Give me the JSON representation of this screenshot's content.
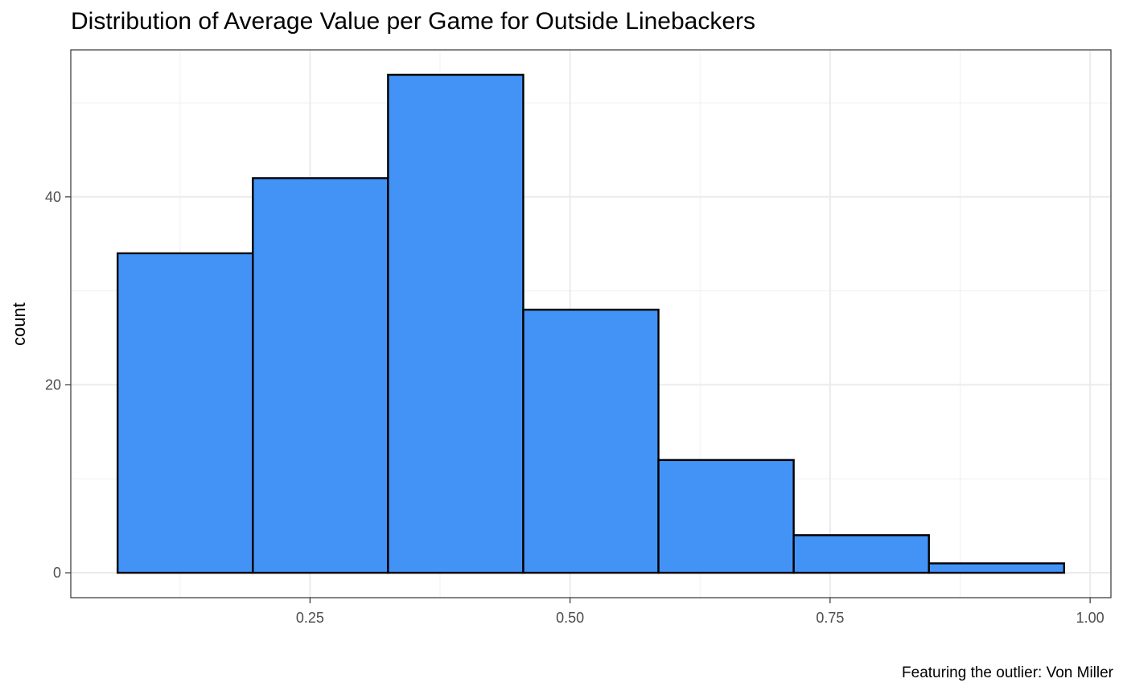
{
  "chart_data": {
    "type": "bar",
    "title": "Distribution of Average Value per Game for Outside Linebackers",
    "caption": "Featuring the outlier: Von Miller",
    "xlabel": "",
    "ylabel": "count",
    "xlim": [
      0.02,
      1.02
    ],
    "ylim": [
      -2.65,
      55.65
    ],
    "x_ticks": [
      0.25,
      0.5,
      0.75,
      1.0
    ],
    "x_tick_labels": [
      "0.25",
      "0.50",
      "0.75",
      "1.00"
    ],
    "y_ticks": [
      0,
      20,
      40
    ],
    "y_tick_labels": [
      "0",
      "20",
      "40"
    ],
    "bin_width": 0.13,
    "bins": [
      {
        "x0": 0.065,
        "x1": 0.195,
        "count": 34
      },
      {
        "x0": 0.195,
        "x1": 0.325,
        "count": 42
      },
      {
        "x0": 0.325,
        "x1": 0.455,
        "count": 53
      },
      {
        "x0": 0.455,
        "x1": 0.585,
        "count": 28
      },
      {
        "x0": 0.585,
        "x1": 0.715,
        "count": 12
      },
      {
        "x0": 0.715,
        "x1": 0.845,
        "count": 4
      },
      {
        "x0": 0.845,
        "x1": 0.975,
        "count": 1
      }
    ],
    "grid": true,
    "bar_fill": "#4393F6",
    "bar_stroke": "#000000"
  }
}
